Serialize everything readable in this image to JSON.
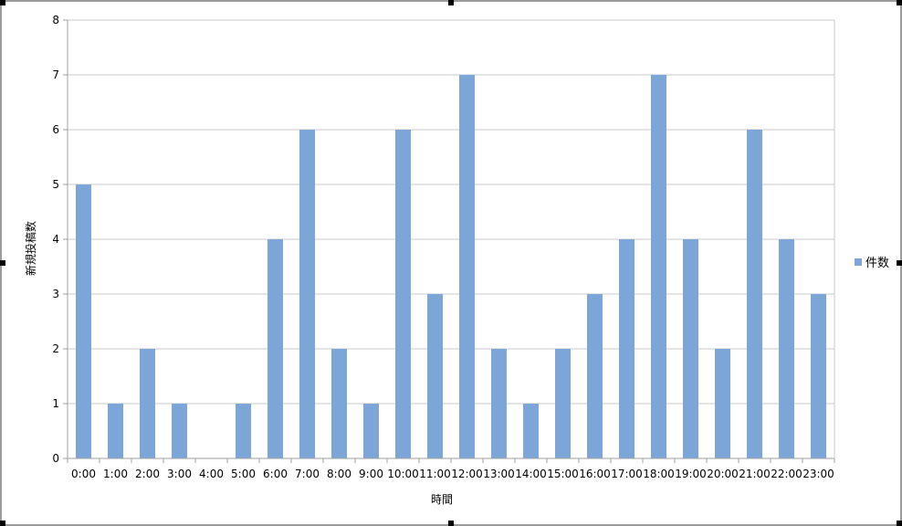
{
  "chart_data": {
    "type": "bar",
    "categories": [
      "0:00",
      "1:00",
      "2:00",
      "3:00",
      "4:00",
      "5:00",
      "6:00",
      "7:00",
      "8:00",
      "9:00",
      "10:00",
      "11:00",
      "12:00",
      "13:00",
      "14:00",
      "15:00",
      "16:00",
      "17:00",
      "18:00",
      "19:00",
      "20:00",
      "21:00",
      "22:00",
      "23:00"
    ],
    "series": [
      {
        "name": "件数",
        "values": [
          5,
          1,
          2,
          1,
          0,
          1,
          4,
          6,
          2,
          1,
          6,
          3,
          7,
          2,
          1,
          2,
          3,
          4,
          7,
          4,
          2,
          6,
          4,
          3
        ]
      }
    ],
    "title": "",
    "xlabel": "時間",
    "ylabel": "新規投稿数",
    "ylim": [
      0,
      8
    ],
    "yticks": [
      "0",
      "1",
      "2",
      "3",
      "4",
      "5",
      "6",
      "7",
      "8"
    ],
    "grid": true,
    "legend_position": "right",
    "colors": {
      "bar": "#7ca6d8",
      "grid": "#c8c8c8",
      "axis": "#a0a0a0",
      "frame": "#9b9b9b"
    }
  }
}
